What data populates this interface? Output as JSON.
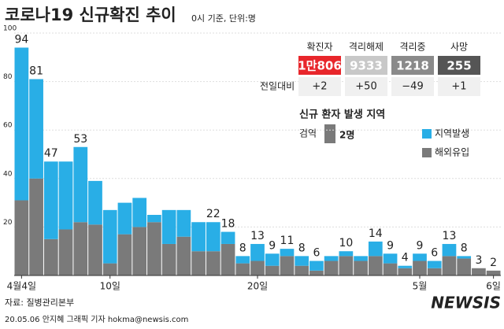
{
  "chart_data": {
    "type": "stacked_bar",
    "title": "코로나19 신규확진 추이",
    "subtitle": "0시 기준, 단위:명",
    "categories": [
      "4월4일",
      null,
      null,
      null,
      null,
      null,
      "10일",
      null,
      null,
      null,
      null,
      null,
      null,
      null,
      null,
      null,
      "20일",
      null,
      null,
      null,
      null,
      null,
      null,
      null,
      null,
      null,
      null,
      "5월",
      null,
      null,
      null,
      null,
      "6일"
    ],
    "series": [
      {
        "name": "지역발생",
        "color": "#29aee6",
        "values": [
          63,
          41,
          32,
          28,
          31,
          18,
          22,
          13,
          12,
          3,
          14,
          11,
          12,
          12,
          5,
          3,
          7,
          5,
          3,
          4,
          4,
          2,
          2,
          2,
          6,
          4,
          1,
          3,
          3,
          5,
          1,
          0,
          0
        ]
      },
      {
        "name": "해외유입",
        "color": "#7a7a7a",
        "values": [
          31,
          40,
          15,
          19,
          22,
          21,
          5,
          17,
          20,
          22,
          13,
          16,
          10,
          10,
          13,
          5,
          6,
          4,
          8,
          4,
          2,
          6,
          8,
          6,
          8,
          5,
          3,
          6,
          3,
          8,
          7,
          3,
          2
        ]
      }
    ],
    "totals": [
      94,
      81,
      47,
      null,
      53,
      null,
      null,
      null,
      null,
      null,
      null,
      null,
      null,
      22,
      18,
      8,
      13,
      9,
      11,
      8,
      6,
      null,
      10,
      null,
      14,
      9,
      4,
      9,
      6,
      13,
      8,
      3,
      2
    ],
    "ylim": [
      0,
      100
    ],
    "yticks": [
      20,
      40,
      60,
      80,
      100
    ],
    "grid": true
  },
  "stats": {
    "headers": [
      "확진자",
      "격리해제",
      "격리중",
      "사망"
    ],
    "values": [
      "1만806",
      "9333",
      "1218",
      "255"
    ],
    "row_label": "전일대비",
    "changes": [
      "+2",
      "+50",
      "−49",
      "+1"
    ]
  },
  "legend_title": "신규 환자 발생 지역",
  "quarantine": {
    "label": "검역",
    "value": "2명"
  },
  "source": "자료: 질병관리본부",
  "credit": "20.05.06 안지혜 그래픽 기자 hokma@newsis.com",
  "logo": "NEWSIS"
}
